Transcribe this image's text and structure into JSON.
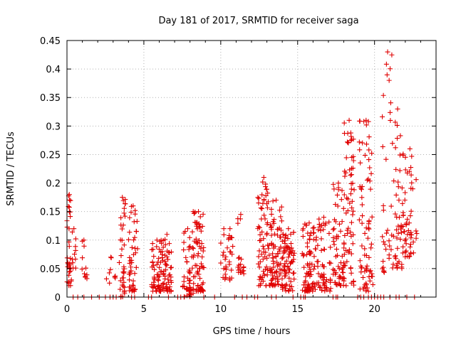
{
  "chart_data": {
    "type": "scatter",
    "title": "Day 181 of 2017, SRMTID for receiver saga",
    "xlabel": "GPS time / hours",
    "ylabel": "SRMTID / TECUs",
    "xlim": [
      0,
      24
    ],
    "ylim": [
      0,
      0.45
    ],
    "grid": true,
    "marker": "plus",
    "series_color": "#e00000",
    "x_ticks": [
      0,
      5,
      10,
      15,
      20
    ],
    "x_tick_labels": [
      "0",
      "5",
      "10",
      "15",
      "20"
    ],
    "y_ticks": [
      0,
      0.05,
      0.1,
      0.15,
      0.2,
      0.25,
      0.3,
      0.35,
      0.4,
      0.45
    ],
    "y_tick_labels": [
      "0",
      "0.05",
      "0.1",
      "0.15",
      "0.2",
      "0.25",
      "0.3",
      "0.35",
      "0.4",
      "0.45"
    ],
    "clusters": [
      {
        "x_range": [
          0.0,
          0.3
        ],
        "y_range": [
          0.02,
          0.18
        ],
        "count": 35
      },
      {
        "x_range": [
          0.3,
          0.6
        ],
        "y_range": [
          0.05,
          0.12
        ],
        "count": 10
      },
      {
        "x_range": [
          0.9,
          1.3
        ],
        "y_range": [
          0.03,
          0.1
        ],
        "count": 10
      },
      {
        "x_range": [
          2.5,
          3.2
        ],
        "y_range": [
          0.02,
          0.07
        ],
        "count": 8
      },
      {
        "x_range": [
          3.4,
          3.8
        ],
        "y_range": [
          0.0,
          0.175
        ],
        "count": 35
      },
      {
        "x_range": [
          4.0,
          4.6
        ],
        "y_range": [
          0.01,
          0.16
        ],
        "count": 45
      },
      {
        "x_range": [
          5.5,
          6.2
        ],
        "y_range": [
          0.01,
          0.1
        ],
        "count": 55
      },
      {
        "x_range": [
          6.2,
          6.8
        ],
        "y_range": [
          0.01,
          0.11
        ],
        "count": 50
      },
      {
        "x_range": [
          7.5,
          8.2
        ],
        "y_range": [
          0.0,
          0.12
        ],
        "count": 45
      },
      {
        "x_range": [
          8.2,
          8.9
        ],
        "y_range": [
          0.01,
          0.15
        ],
        "count": 75
      },
      {
        "x_range": [
          10.0,
          10.4
        ],
        "y_range": [
          0.03,
          0.12
        ],
        "count": 15
      },
      {
        "x_range": [
          10.4,
          10.8
        ],
        "y_range": [
          0.03,
          0.12
        ],
        "count": 18
      },
      {
        "x_range": [
          11.1,
          11.5
        ],
        "y_range": [
          0.04,
          0.145
        ],
        "count": 20
      },
      {
        "x_range": [
          12.4,
          13.2
        ],
        "y_range": [
          0.02,
          0.21
        ],
        "count": 70
      },
      {
        "x_range": [
          13.2,
          14.0
        ],
        "y_range": [
          0.02,
          0.17
        ],
        "count": 80
      },
      {
        "x_range": [
          14.0,
          14.8
        ],
        "y_range": [
          0.01,
          0.12
        ],
        "count": 75
      },
      {
        "x_range": [
          15.3,
          16.2
        ],
        "y_range": [
          0.01,
          0.13
        ],
        "count": 80
      },
      {
        "x_range": [
          16.2,
          17.2
        ],
        "y_range": [
          0.01,
          0.14
        ],
        "count": 60
      },
      {
        "x_range": [
          17.3,
          18.0
        ],
        "y_range": [
          0.02,
          0.2
        ],
        "count": 55
      },
      {
        "x_range": [
          18.0,
          18.7
        ],
        "y_range": [
          0.02,
          0.31
        ],
        "count": 70
      },
      {
        "x_range": [
          19.0,
          19.9
        ],
        "y_range": [
          0.01,
          0.31
        ],
        "count": 75
      },
      {
        "x_range": [
          20.5,
          21.2
        ],
        "y_range": [
          0.04,
          0.43
        ],
        "count": 35
      },
      {
        "x_range": [
          21.2,
          21.8
        ],
        "y_range": [
          0.05,
          0.33
        ],
        "count": 40
      },
      {
        "x_range": [
          21.8,
          22.8
        ],
        "y_range": [
          0.07,
          0.26
        ],
        "count": 55
      }
    ],
    "zero_line_points_x": [
      0.4,
      0.7,
      1.1,
      1.6,
      2.1,
      2.5,
      2.8,
      3.0,
      3.2,
      3.5,
      4.2,
      4.4,
      5.3,
      5.5,
      6.6,
      7.2,
      7.4,
      8.9,
      9.6,
      10.9,
      11.4,
      11.7,
      12.2,
      12.4,
      13.3,
      13.6,
      14.7,
      15.2,
      15.4,
      15.5,
      17.3,
      17.5,
      17.6,
      18.9,
      19.1,
      19.3,
      19.6,
      19.8,
      20.0,
      20.2,
      20.4,
      20.6,
      21.0,
      21.4,
      21.6,
      22.1,
      22.6
    ]
  }
}
